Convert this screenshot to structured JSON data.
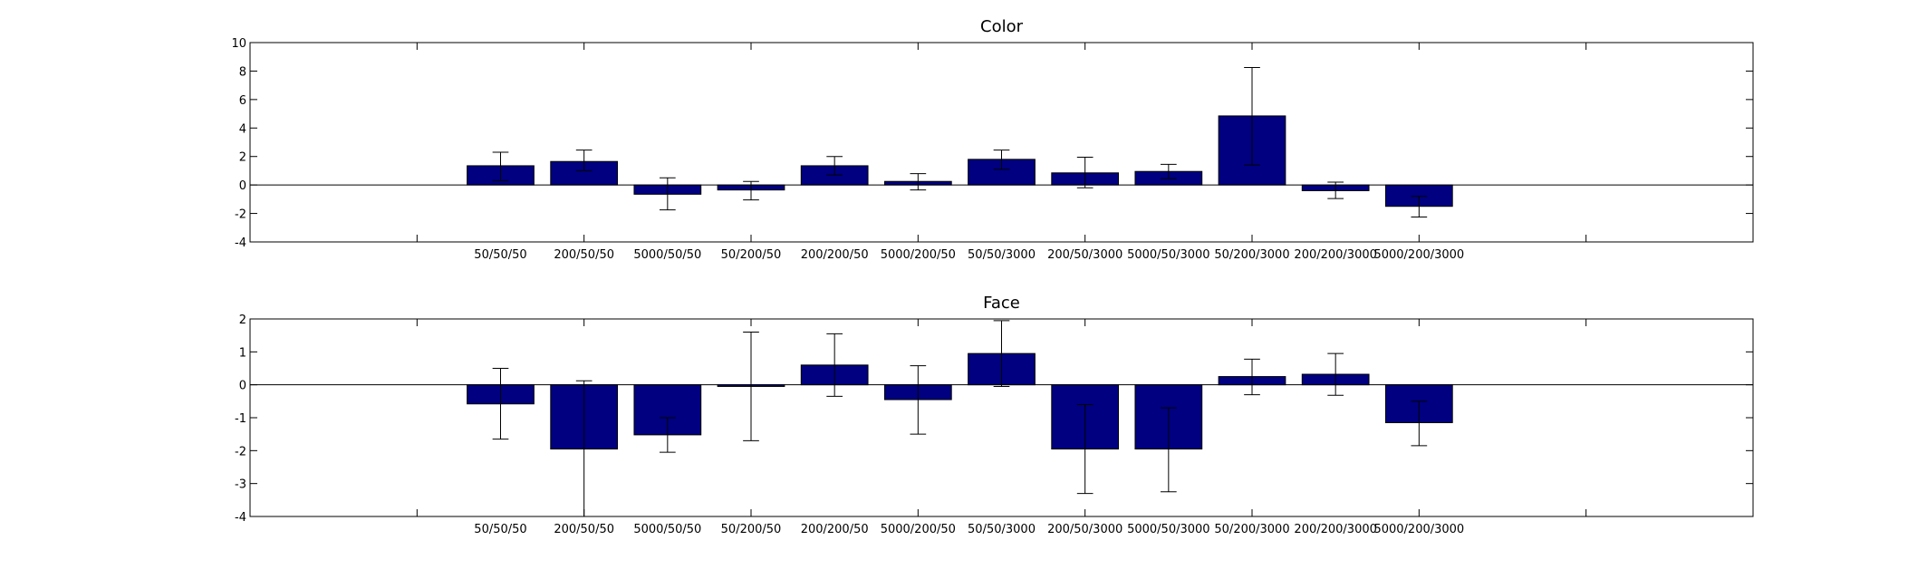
{
  "chart_data": [
    {
      "type": "bar",
      "title": "Color",
      "categories": [
        "50/50/50",
        "200/50/50",
        "5000/50/50",
        "50/200/50",
        "200/200/50",
        "5000/200/50",
        "50/50/3000",
        "200/50/3000",
        "5000/50/3000",
        "50/200/3000",
        "200/200/3000",
        "5000/200/3000"
      ],
      "values": [
        1.35,
        1.65,
        -0.65,
        -0.35,
        1.35,
        0.25,
        1.8,
        0.85,
        0.95,
        4.85,
        -0.4,
        -1.5
      ],
      "error_low": [
        0.3,
        1.0,
        -1.75,
        -1.05,
        0.7,
        -0.35,
        1.1,
        -0.2,
        0.45,
        1.4,
        -0.95,
        -2.25
      ],
      "error_high": [
        2.3,
        2.45,
        0.5,
        0.25,
        2.0,
        0.8,
        2.45,
        1.95,
        1.45,
        8.25,
        0.2,
        -0.8
      ],
      "yticks": [
        -4,
        -2,
        0,
        2,
        4,
        6,
        8,
        10
      ],
      "ylim": [
        -4,
        10
      ],
      "xlim": [
        -2,
        16
      ],
      "xlabel": "",
      "ylabel": "",
      "bar_color": "#000080",
      "grid": false
    },
    {
      "type": "bar",
      "title": "Face",
      "categories": [
        "50/50/50",
        "200/50/50",
        "5000/50/50",
        "50/200/50",
        "200/200/50",
        "5000/200/50",
        "50/50/3000",
        "200/50/3000",
        "5000/50/3000",
        "50/200/3000",
        "200/200/3000",
        "5000/200/3000"
      ],
      "values": [
        -0.58,
        -1.95,
        -1.52,
        -0.05,
        0.6,
        -0.45,
        0.95,
        -1.95,
        -1.95,
        0.25,
        0.32,
        -1.15
      ],
      "error_low": [
        -1.65,
        -4.0,
        -2.05,
        -1.7,
        -0.35,
        -1.5,
        -0.05,
        -3.3,
        -3.25,
        -0.3,
        -0.32,
        -1.85
      ],
      "error_high": [
        0.5,
        0.12,
        -1.0,
        1.6,
        1.55,
        0.58,
        1.95,
        -0.6,
        -0.7,
        0.78,
        0.95,
        -0.5
      ],
      "yticks": [
        -4,
        -3,
        -2,
        -1,
        0,
        1,
        2
      ],
      "ylim": [
        -4,
        2
      ],
      "xlim": [
        -2,
        16
      ],
      "xlabel": "",
      "ylabel": "",
      "bar_color": "#000080",
      "grid": false
    }
  ]
}
